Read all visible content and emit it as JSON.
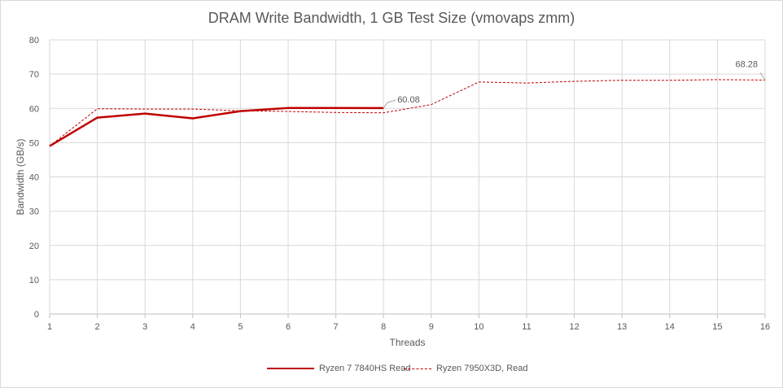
{
  "chart_data": {
    "type": "line",
    "title": "DRAM Write Bandwidth, 1 GB Test Size (vmovaps zmm)",
    "xlabel": "Threads",
    "ylabel": "Bandwidth (GB/s)",
    "ylim": [
      0,
      80
    ],
    "yticks": [
      0,
      10,
      20,
      30,
      40,
      50,
      60,
      70,
      80
    ],
    "x": [
      1,
      2,
      3,
      4,
      5,
      6,
      7,
      8,
      9,
      10,
      11,
      12,
      13,
      14,
      15,
      16
    ],
    "grid": true,
    "legend_position": "bottom",
    "series": [
      {
        "name": "Ryzen 7 7840HS Read",
        "style": "solid",
        "color": "#c00000",
        "x": [
          1,
          2,
          3,
          4,
          5,
          6,
          7,
          8
        ],
        "values": [
          49.0,
          57.3,
          58.5,
          57.1,
          59.2,
          60.1,
          60.1,
          60.08
        ]
      },
      {
        "name": "Ryzen 7950X3D, Read",
        "style": "dashed",
        "color": "#c00000",
        "x": [
          1,
          2,
          3,
          4,
          5,
          6,
          7,
          8,
          9,
          10,
          11,
          12,
          13,
          14,
          15,
          16
        ],
        "values": [
          49.0,
          59.9,
          59.8,
          59.8,
          59.3,
          59.1,
          58.8,
          58.7,
          61.1,
          67.7,
          67.4,
          67.9,
          68.2,
          68.2,
          68.4,
          68.28
        ]
      }
    ],
    "annotations": [
      {
        "series": 0,
        "x": 8,
        "label": "60.08"
      },
      {
        "series": 1,
        "x": 16,
        "label": "68.28"
      }
    ]
  }
}
